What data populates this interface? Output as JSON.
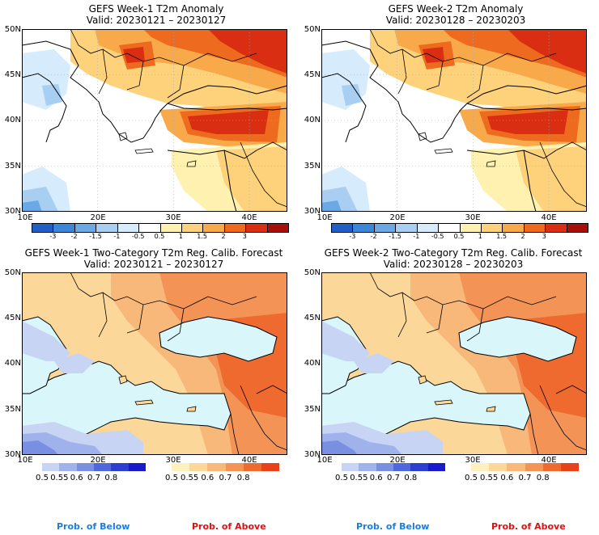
{
  "panels": {
    "p1": {
      "title": "GEFS Week-1 T2m Anomaly",
      "valid": "Valid: 20230121 – 20230127"
    },
    "p2": {
      "title": "GEFS Week-2 T2m Anomaly",
      "valid": "Valid: 20230128 – 20230203"
    },
    "p3": {
      "title": "GEFS Week-1 Two-Category T2m Reg. Calib. Forecast",
      "valid": "Valid: 20230121 – 20230127"
    },
    "p4": {
      "title": "GEFS Week-2 Two-Category T2m Reg. Calib. Forecast",
      "valid": "Valid: 20230128 – 20230203"
    }
  },
  "axes": {
    "y_ticks": [
      "50N",
      "45N",
      "40N",
      "35N",
      "30N"
    ],
    "x_ticks": [
      "10E",
      "20E",
      "30E",
      "40E"
    ]
  },
  "anomaly_colorbar": {
    "labels": [
      "-3",
      "-2",
      "-1.5",
      "-1",
      "-0.5",
      "0.5",
      "1",
      "1.5",
      "2",
      "3"
    ],
    "colors": [
      "#1f5fc6",
      "#3a86d9",
      "#6aa8e6",
      "#a8cff2",
      "#d6ebfb",
      "#ffffff",
      "#fff2b0",
      "#fdd27a",
      "#f8a94a",
      "#ee6a1f",
      "#d92e12",
      "#a70f0a"
    ]
  },
  "prob_below_bar": {
    "labels": [
      "0.5",
      "0.55",
      "0.6",
      "0.7",
      "0.8"
    ],
    "colors": [
      "#c8d4f4",
      "#9fb2ec",
      "#7990e2",
      "#4f67da",
      "#2d3fd0",
      "#1a1acc"
    ]
  },
  "prob_above_bar": {
    "labels": [
      "0.5",
      "0.55",
      "0.6",
      "0.7",
      "0.8"
    ],
    "colors": [
      "#fff0c0",
      "#fbd79a",
      "#f7b87a",
      "#f39456",
      "#ee6a2e",
      "#e8421a"
    ]
  },
  "legend": {
    "below_text": "Prob. of Below",
    "above_text": "Prob. of Above",
    "below_color": "#1a7fdc",
    "above_color": "#e01010"
  },
  "colors": {
    "sea_light": "#d9f6fb",
    "coast": "#000000",
    "grid": "#aaaaaa"
  }
}
